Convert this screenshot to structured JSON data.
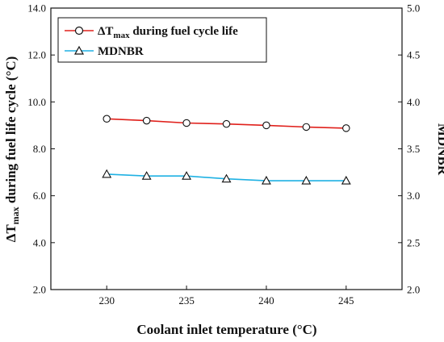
{
  "chart_data": {
    "type": "line",
    "x": [
      230,
      232.5,
      235,
      237.5,
      240,
      242.5,
      245
    ],
    "xlabel": "Coolant inlet temperature (°C)",
    "xlim": [
      226.5,
      248.5
    ],
    "xticks": [
      "230",
      "235",
      "240",
      "245"
    ],
    "ylabel_left_prefix": "ΔT",
    "ylabel_left_sub": "max",
    "ylabel_left_suffix": " during fuel life cycle (°C)",
    "ylim_left": [
      2.0,
      14.0
    ],
    "yticks_left": [
      "2.0",
      "4.0",
      "6.0",
      "8.0",
      "10.0",
      "12.0",
      "14.0"
    ],
    "ylabel_right": "MDNBR",
    "ylim_right": [
      2.0,
      5.0
    ],
    "yticks_right": [
      "2.0",
      "2.5",
      "3.0",
      "3.5",
      "4.0",
      "4.5",
      "5.0"
    ],
    "legend_position": "top-left",
    "series": [
      {
        "name_prefix": "ΔT",
        "name_sub": "max",
        "name_suffix": " during fuel cycle life",
        "axis": "left",
        "marker": "circle",
        "color": "#e0201b",
        "values": [
          9.28,
          9.2,
          9.1,
          9.06,
          9.0,
          8.93,
          8.88
        ]
      },
      {
        "name": "MDNBR",
        "axis": "right",
        "marker": "triangle",
        "color": "#1fb1e3",
        "values": [
          3.23,
          3.21,
          3.21,
          3.18,
          3.16,
          3.16,
          3.16
        ]
      }
    ]
  }
}
